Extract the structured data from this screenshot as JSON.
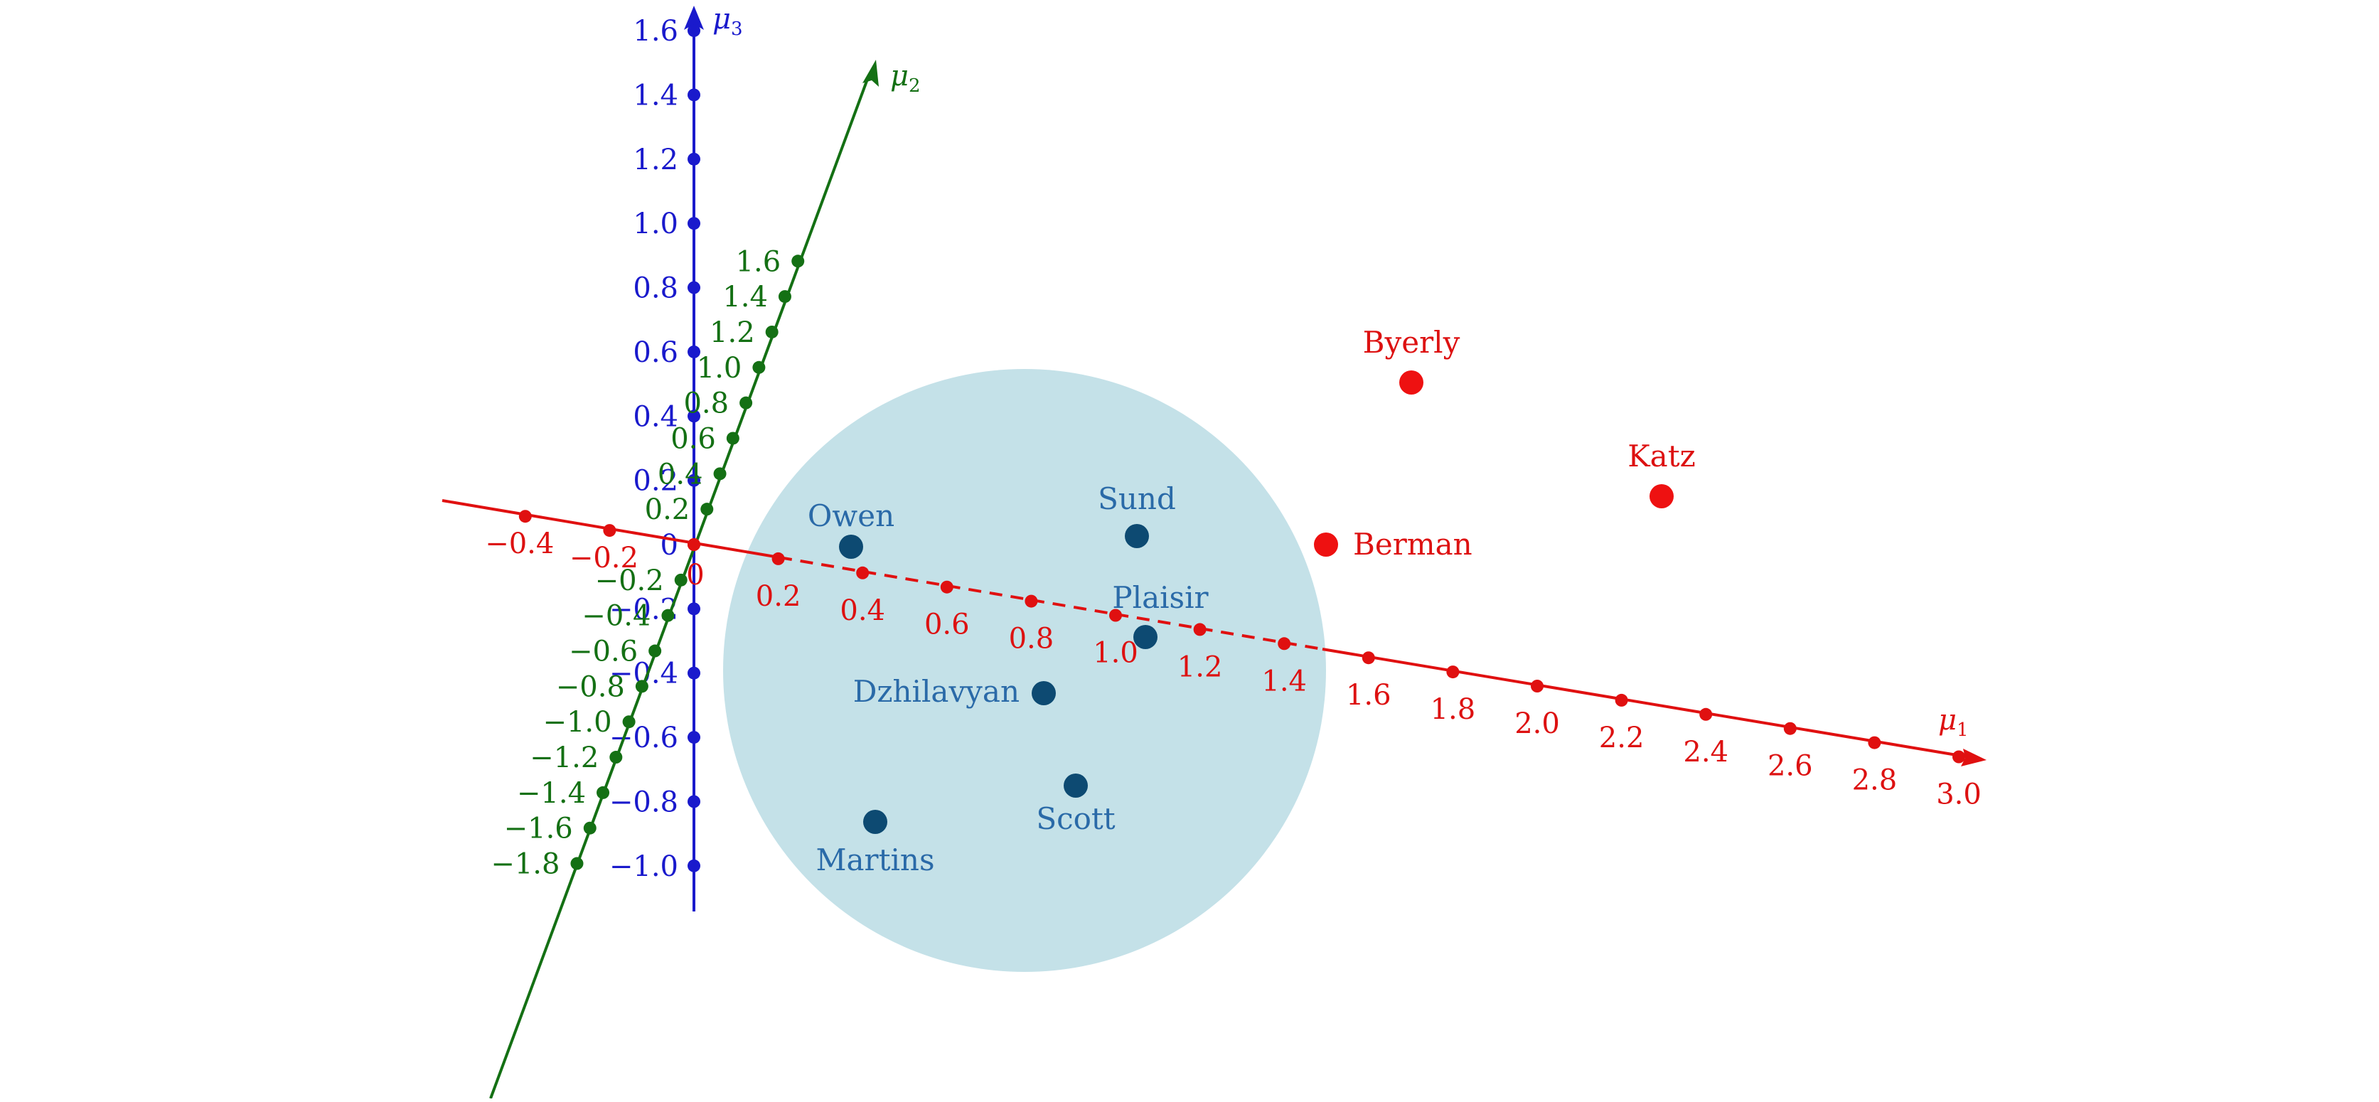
{
  "axes": {
    "mu1": {
      "label": "μ",
      "sub": "1",
      "color": "#e01010",
      "ticks": [
        "−0.4",
        "−0.2",
        "0",
        "0.2",
        "0.4",
        "0.6",
        "0.8",
        "1.0",
        "1.2",
        "1.4",
        "1.6",
        "1.8",
        "2.0",
        "2.2",
        "2.4",
        "2.6",
        "2.8",
        "3.0"
      ]
    },
    "mu2": {
      "label": "μ",
      "sub": "2",
      "color": "#147014",
      "ticks": [
        "−1.8",
        "−1.6",
        "−1.4",
        "−1.2",
        "−1.0",
        "−0.8",
        "−0.6",
        "−0.4",
        "−0.2",
        "0.2",
        "0.4",
        "0.6",
        "0.8",
        "1.0",
        "1.2",
        "1.4",
        "1.6"
      ]
    },
    "mu3": {
      "label": "μ",
      "sub": "3",
      "color": "#1a1acc",
      "ticks": [
        "−1.0",
        "−0.8",
        "−0.6",
        "−0.4",
        "−0.2",
        "0",
        "0.2",
        "0.4",
        "0.6",
        "0.8",
        "1.0",
        "1.2",
        "1.4",
        "1.6"
      ]
    }
  },
  "region": {
    "fill": "#c4e1e8"
  },
  "points_inside": [
    {
      "name": "Owen"
    },
    {
      "name": "Sund"
    },
    {
      "name": "Plaisir"
    },
    {
      "name": "Dzhilavyan"
    },
    {
      "name": "Scott"
    },
    {
      "name": "Martins"
    }
  ],
  "points_outside": [
    {
      "name": "Byerly"
    },
    {
      "name": "Katz"
    },
    {
      "name": "Berman"
    }
  ],
  "colors": {
    "inside_point": "#0d4a72",
    "inside_label": "#2a6aa8",
    "outside_point": "#ee1111"
  }
}
